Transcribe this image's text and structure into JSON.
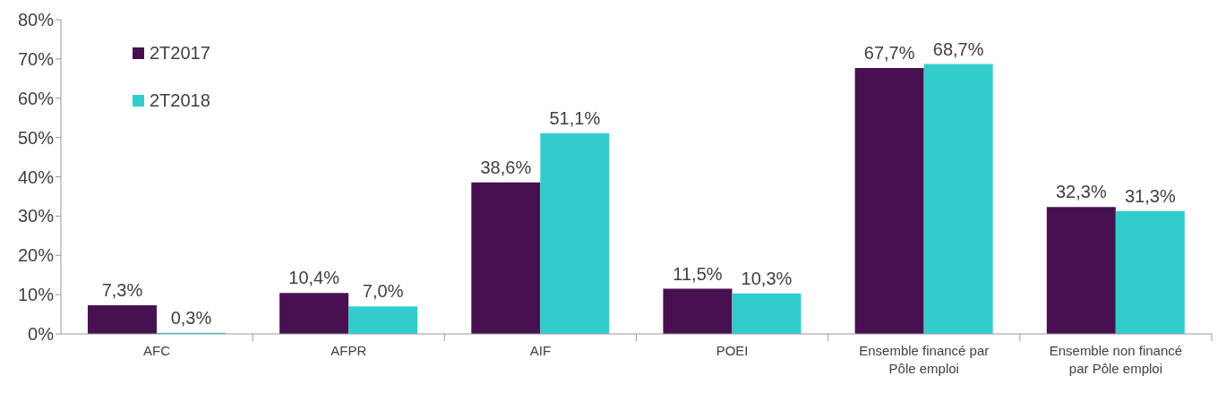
{
  "chart_data": {
    "type": "bar",
    "categories": [
      "AFC",
      "AFPR",
      "AIF",
      "POEI",
      "Ensemble financé par Pôle emploi",
      "Ensemble non financé par Pôle emploi"
    ],
    "series": [
      {
        "name": "2T2017",
        "color": "#47114f",
        "values": [
          7.3,
          10.4,
          38.6,
          11.5,
          67.7,
          32.3
        ],
        "value_labels": [
          "7,3%",
          "10,4%",
          "38,6%",
          "11,5%",
          "67,7%",
          "32,3%"
        ]
      },
      {
        "name": "2T2018",
        "color": "#33cccc",
        "values": [
          0.3,
          7.0,
          51.1,
          10.3,
          68.7,
          31.3
        ],
        "value_labels": [
          "0,3%",
          "7,0%",
          "51,1%",
          "10,3%",
          "68,7%",
          "31,3%"
        ]
      }
    ],
    "ylim": [
      0,
      80
    ],
    "yticks": [
      {
        "value": 0,
        "label": "0%"
      },
      {
        "value": 10,
        "label": "10%"
      },
      {
        "value": 20,
        "label": "20%"
      },
      {
        "value": 30,
        "label": "30%"
      },
      {
        "value": 40,
        "label": "40%"
      },
      {
        "value": 50,
        "label": "50%"
      },
      {
        "value": 60,
        "label": "60%"
      },
      {
        "value": 70,
        "label": "70%"
      },
      {
        "value": 80,
        "label": "80%"
      }
    ],
    "grid": false,
    "legend": "top left"
  }
}
